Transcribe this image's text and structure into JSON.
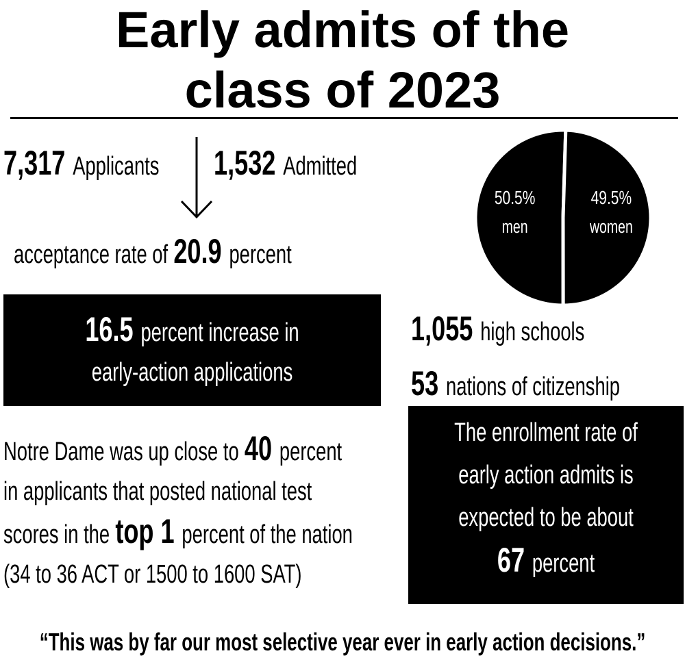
{
  "title_lines": [
    "Early admits of the",
    "class of 2023"
  ],
  "applicants": {
    "number": "7,317",
    "label": "Applicants"
  },
  "admitted": {
    "number": "1,532",
    "label": "Admitted"
  },
  "acceptance": [
    {
      "text": "acceptance rate of"
    },
    {
      "text": "20.9",
      "bold": true
    },
    {
      "text": "percent"
    }
  ],
  "increase": [
    [
      {
        "text": "16.5",
        "bold": true
      },
      {
        "text": "percent increase in"
      }
    ],
    [
      {
        "text": "early-action applications"
      }
    ]
  ],
  "test_scores": [
    [
      {
        "text": "Notre Dame was up close to"
      },
      {
        "text": "40",
        "bold": true
      },
      {
        "text": "percent"
      }
    ],
    [
      {
        "text": "in applicants that posted national test"
      }
    ],
    [
      {
        "text": "scores in the"
      },
      {
        "text": "top 1",
        "bold": true
      },
      {
        "text": "percent of the nation"
      }
    ],
    [
      {
        "text": "(34 to 36 ACT or 1500 to 1600 SAT)"
      }
    ]
  ],
  "schools": [
    [
      {
        "text": "1,055",
        "bold": true
      },
      {
        "text": "high schools"
      }
    ]
  ],
  "nations": [
    [
      {
        "text": "53",
        "bold": true
      },
      {
        "text": "nations of citizenship"
      }
    ]
  ],
  "enrollment": [
    [
      {
        "text": "The enrollment rate of"
      }
    ],
    [
      {
        "text": "early action admits is"
      }
    ],
    [
      {
        "text": "expected to be about"
      }
    ],
    [
      {
        "text": "67",
        "bold": true
      },
      {
        "text": "percent"
      }
    ]
  ],
  "quote": "“This was by far our most selective year ever in early action decisions.”",
  "chart_data": {
    "type": "pie",
    "categories": [
      "men",
      "women"
    ],
    "values": [
      50.5,
      49.5
    ],
    "value_labels": [
      "50.5%",
      "49.5%"
    ],
    "color": "#000000"
  }
}
